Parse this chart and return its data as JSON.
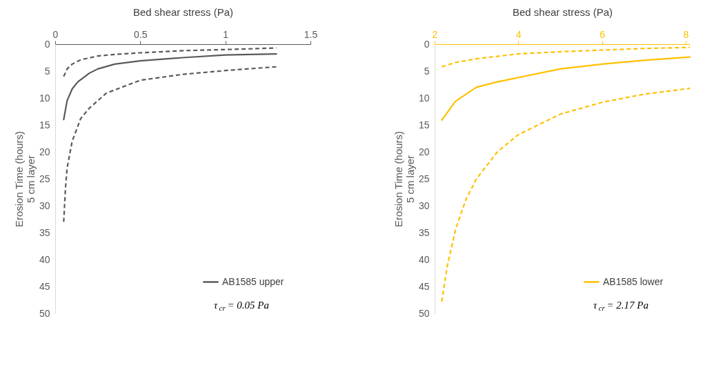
{
  "chart_data": [
    {
      "type": "line",
      "xlabel": "Bed shear stress (Pa)",
      "ylabel": "Erosion Time (hours)\n5 cm layer",
      "xlim": [
        0,
        1.5
      ],
      "xticks": [
        0,
        0.5,
        1,
        1.5
      ],
      "ylim": [
        50,
        0
      ],
      "yticks": [
        0,
        5,
        10,
        15,
        20,
        25,
        30,
        35,
        40,
        45,
        50
      ],
      "legend": "bottom right",
      "grid": false,
      "annotations": [
        "τ$_{cr}$ = 0.05 Pa"
      ],
      "series": [
        {
          "name": "AB1585 upper",
          "color": "#595959",
          "line_style": "solid",
          "x": [
            0.05,
            0.07,
            0.1,
            0.133,
            0.2,
            0.25,
            0.35,
            0.5,
            0.75,
            1.0,
            1.3
          ],
          "values": [
            14,
            10.5,
            8.3,
            7,
            5.4,
            4.6,
            3.7,
            3.1,
            2.5,
            2.0,
            1.8
          ]
        },
        {
          "color": "#595959",
          "line_style": "dashed",
          "x": [
            0.05,
            0.07,
            0.1,
            0.15,
            0.25,
            0.35,
            0.5,
            0.75,
            1.0,
            1.3
          ],
          "values": [
            6.0,
            4.6,
            3.7,
            2.9,
            2.2,
            1.9,
            1.6,
            1.2,
            1.0,
            0.7
          ]
        },
        {
          "color": "#595959",
          "line_style": "dashed",
          "x": [
            0.05,
            0.06,
            0.07,
            0.1,
            0.15,
            0.2,
            0.3,
            0.5,
            0.75,
            1.0,
            1.3
          ],
          "values": [
            33,
            27,
            23,
            18,
            13.8,
            11.9,
            9.1,
            6.7,
            5.6,
            4.9,
            4.2
          ]
        }
      ]
    },
    {
      "type": "line",
      "xlabel": "Bed shear stress (Pa)",
      "ylabel": "Erosion Time (hours)\n5 cm layer",
      "xlim": [
        2,
        8.1
      ],
      "xticks": [
        2,
        4,
        6,
        8
      ],
      "ylim": [
        50,
        0
      ],
      "yticks": [
        0,
        5,
        10,
        15,
        20,
        25,
        30,
        35,
        40,
        45,
        50
      ],
      "legend": "bottom right",
      "grid": false,
      "annotations": [
        "τ$_{cr}$ = 2.17 Pa"
      ],
      "series": [
        {
          "name": "AB1585 lower",
          "color": "#ffc000",
          "line_style": "solid",
          "x": [
            2.17,
            2.5,
            3,
            3.5,
            4,
            5,
            6,
            7,
            8.1
          ],
          "values": [
            14.1,
            10.6,
            8.0,
            7.0,
            6.2,
            4.6,
            3.7,
            3.0,
            2.4
          ]
        },
        {
          "color": "#ffc000",
          "line_style": "dashed",
          "x": [
            2.17,
            2.5,
            3,
            4,
            5,
            6,
            7,
            8.1
          ],
          "values": [
            4.2,
            3.4,
            2.7,
            1.8,
            1.4,
            1.1,
            0.8,
            0.6
          ]
        },
        {
          "color": "#ffc000",
          "line_style": "dashed",
          "x": [
            2.17,
            2.3,
            2.5,
            2.75,
            3,
            3.5,
            4,
            5,
            6,
            7,
            8.1
          ],
          "values": [
            47.8,
            41.3,
            34.4,
            28.8,
            25,
            20,
            16.8,
            13,
            10.8,
            9.3,
            8.2
          ]
        }
      ]
    }
  ]
}
